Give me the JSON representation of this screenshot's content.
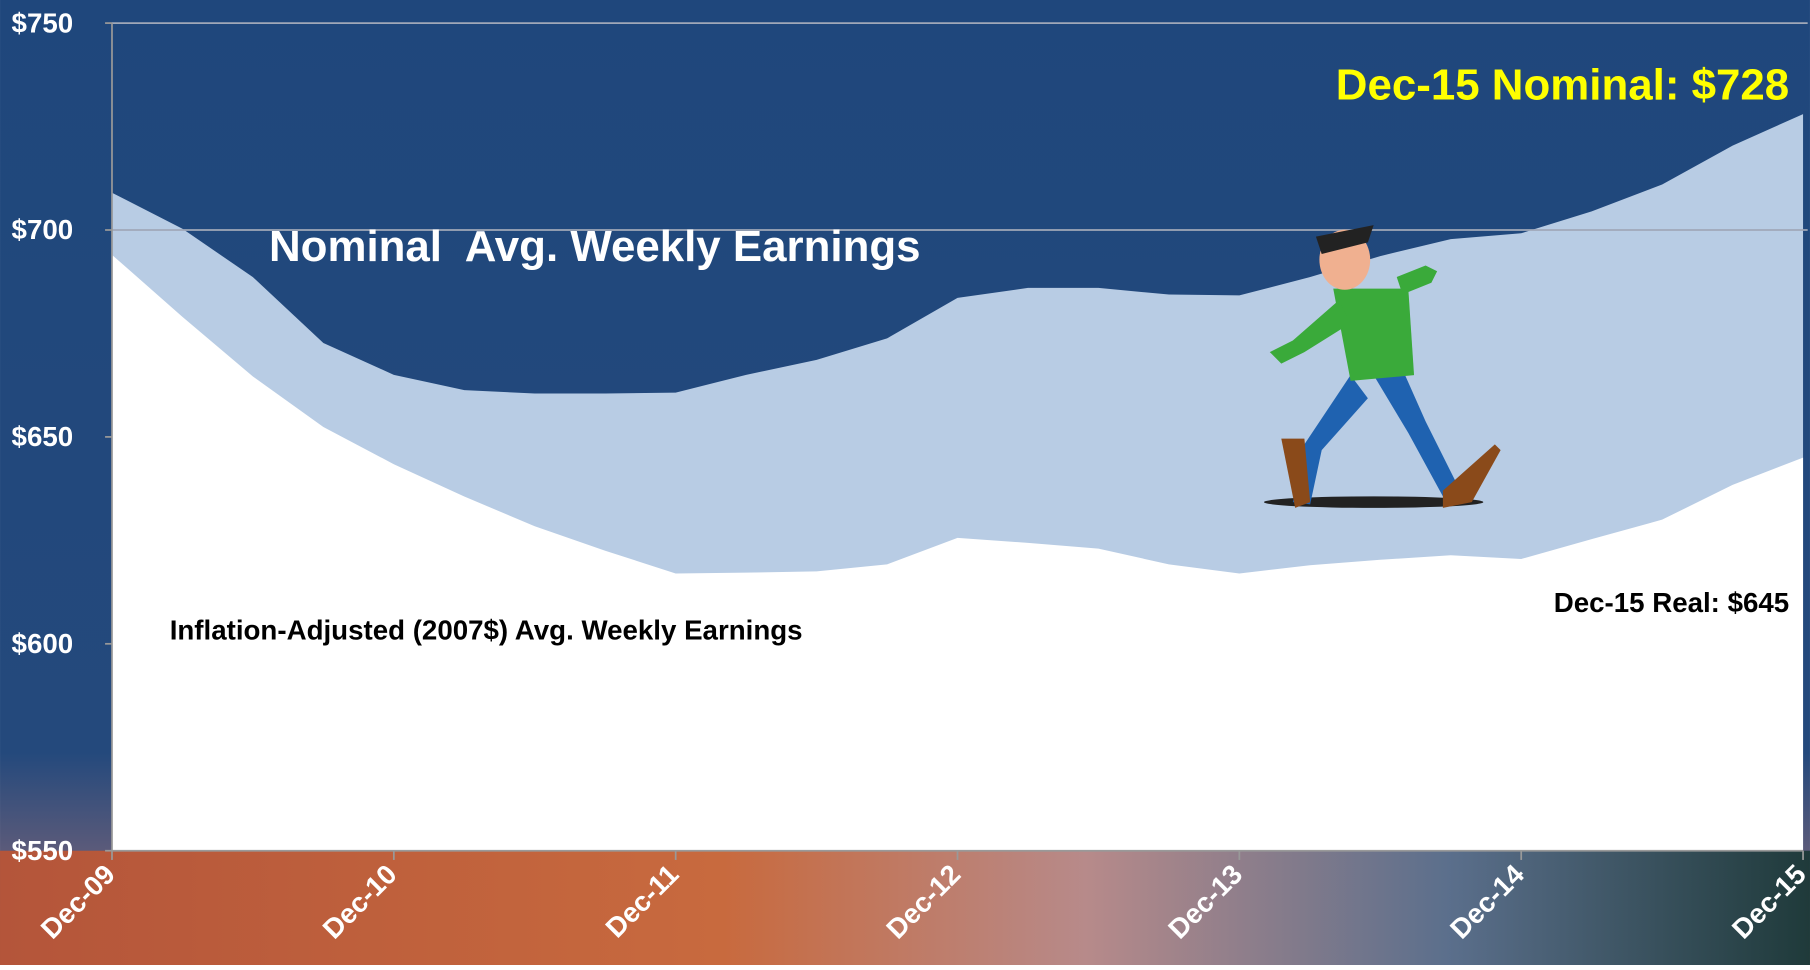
{
  "chart_data": {
    "type": "area",
    "categories": [
      "Dec-09",
      null,
      null,
      null,
      "Dec-10",
      null,
      null,
      null,
      "Dec-11",
      null,
      null,
      null,
      "Dec-12",
      null,
      null,
      null,
      "Dec-13",
      null,
      null,
      null,
      "Dec-14",
      null,
      null,
      null,
      "Dec-15"
    ],
    "series": [
      {
        "name": "Nominal  Avg. Weekly Earnings",
        "color": "#b8cce4",
        "values": [
          709,
          700.3,
          688.6,
          672.7,
          665,
          661.3,
          660.5,
          660.5,
          660.7,
          665,
          668.6,
          673.8,
          683.6,
          686,
          686,
          684.4,
          684.2,
          688.6,
          693.7,
          697.8,
          699.2,
          704.5,
          711,
          720.4,
          728
        ]
      },
      {
        "name": "Inflation-Adjusted (2007$) Avg. Weekly Earnings",
        "color": "#ffffff",
        "values": [
          694,
          679,
          664.6,
          652.4,
          643.4,
          635.6,
          628.4,
          622.5,
          617,
          617.2,
          617.5,
          619.2,
          625.6,
          624.4,
          623,
          619.2,
          617,
          619,
          620.3,
          621.4,
          620.5,
          625.3,
          630,
          638.4,
          645
        ]
      }
    ],
    "annotations": [
      "Dec-15 Nominal: $728",
      "Dec-15 Real: $645"
    ],
    "ylim": [
      550,
      750
    ],
    "yticks": [
      {
        "value": 550,
        "label": "$550"
      },
      {
        "value": 600,
        "label": "$600"
      },
      {
        "value": 650,
        "label": "$650"
      },
      {
        "value": 700,
        "label": "$700"
      },
      {
        "value": 750,
        "label": "$750"
      }
    ],
    "grid": true
  }
}
